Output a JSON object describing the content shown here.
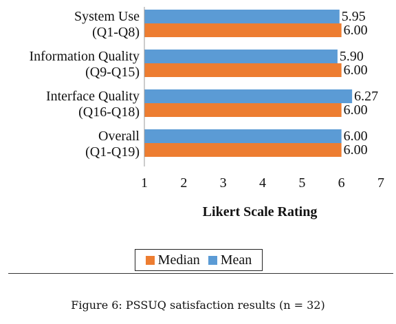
{
  "chart_data": {
    "type": "bar",
    "orientation": "horizontal",
    "categories": [
      [
        "System Use",
        "(Q1-Q8)"
      ],
      [
        "Information Quality",
        "(Q9-Q15)"
      ],
      [
        "Interface Quality",
        "(Q16-Q18)"
      ],
      [
        "Overall",
        "(Q1-Q19)"
      ]
    ],
    "series": [
      {
        "name": "Mean",
        "color": "#5b9bd5",
        "values": [
          5.95,
          5.9,
          6.27,
          6.0
        ],
        "labels": [
          "5.95",
          "5.90",
          "6.27",
          "6.00"
        ]
      },
      {
        "name": "Median",
        "color": "#ed7d31",
        "values": [
          6.0,
          6.0,
          6.0,
          6.0
        ],
        "labels": [
          "6.00",
          "6.00",
          "6.00",
          "6.00"
        ]
      }
    ],
    "xlabel": "Likert Scale Rating",
    "xlim": [
      1,
      7
    ],
    "xticks": [
      "1",
      "2",
      "3",
      "4",
      "5",
      "6",
      "7"
    ],
    "grid": false,
    "legend_position": "bottom"
  },
  "legend": {
    "items": [
      {
        "label": "Median",
        "color": "#ed7d31"
      },
      {
        "label": "Mean",
        "color": "#5b9bd5"
      }
    ]
  },
  "caption": {
    "text": "Figure 6: PSSUQ satisfaction results (n = 32)"
  }
}
